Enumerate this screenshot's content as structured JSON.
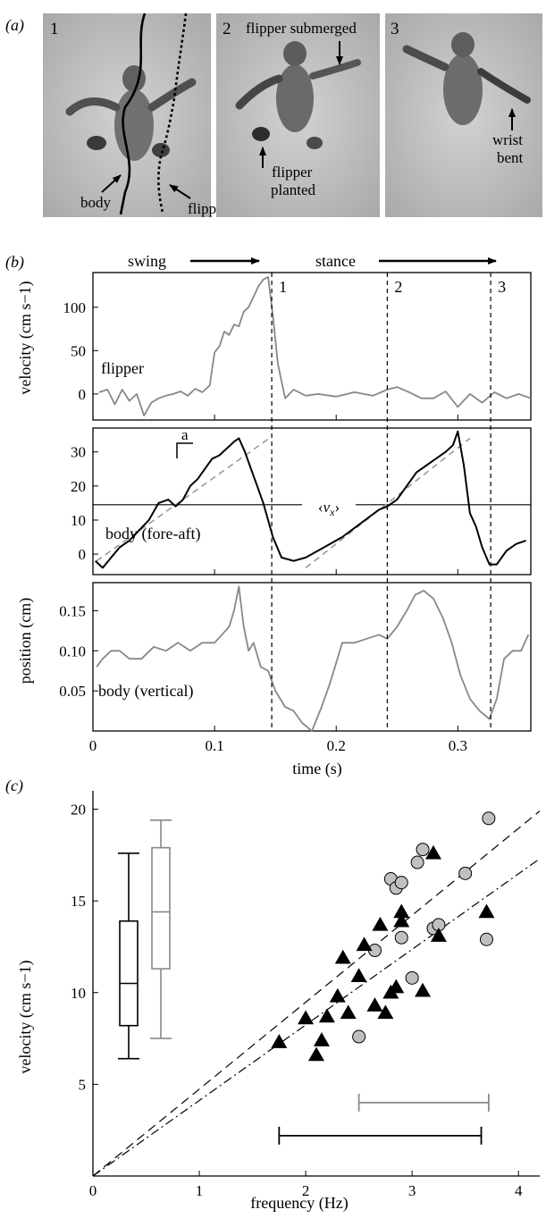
{
  "panel_a": {
    "label": "(a)",
    "frames": [
      {
        "number": "1",
        "annotations": [
          "body",
          "flipper"
        ]
      },
      {
        "number": "2",
        "annotations": [
          "flipper submerged",
          "flipper",
          "planted"
        ]
      },
      {
        "number": "3",
        "annotations": [
          "wrist",
          "bent"
        ]
      }
    ]
  },
  "colors": {
    "black": "#000000",
    "grey": "#888888",
    "grey_fill": "#c0c0c0",
    "photo_bg": "#c8c8c8"
  },
  "chart_data": [
    {
      "panel": "(b)",
      "type": "line",
      "phase_labels": [
        "swing",
        "stance"
      ],
      "event_lines": {
        "x": [
          0.147,
          0.242,
          0.327
        ],
        "labels": [
          "1",
          "2",
          "3"
        ]
      },
      "xlabel": "time (s)",
      "xticks": [
        "0",
        "0.1",
        "0.2",
        "0.3"
      ],
      "xlim": [
        0,
        0.36
      ],
      "subplots": [
        {
          "name": "flipper",
          "ylabel": "velocity (cm s−1)",
          "yticks": [
            "0",
            "50",
            "100"
          ],
          "ylim": [
            -30,
            140
          ],
          "color": "#888888",
          "series": {
            "x": [
              0.005,
              0.012,
              0.018,
              0.024,
              0.03,
              0.036,
              0.042,
              0.048,
              0.054,
              0.06,
              0.066,
              0.072,
              0.078,
              0.084,
              0.09,
              0.096,
              0.1,
              0.104,
              0.108,
              0.112,
              0.116,
              0.12,
              0.124,
              0.128,
              0.132,
              0.136,
              0.14,
              0.144,
              0.148,
              0.152,
              0.158,
              0.165,
              0.175,
              0.185,
              0.2,
              0.215,
              0.23,
              0.242,
              0.25,
              0.26,
              0.27,
              0.28,
              0.29,
              0.3,
              0.31,
              0.32,
              0.33,
              0.34,
              0.35,
              0.36
            ],
            "y": [
              2,
              5,
              -12,
              5,
              -8,
              0,
              -25,
              -10,
              -5,
              -2,
              0,
              3,
              -2,
              6,
              2,
              10,
              48,
              55,
              72,
              68,
              80,
              78,
              95,
              100,
              112,
              124,
              132,
              135,
              90,
              35,
              -5,
              5,
              -2,
              0,
              -3,
              2,
              -2,
              5,
              8,
              2,
              -5,
              -5,
              3,
              -15,
              0,
              -10,
              2,
              -5,
              0,
              -5
            ]
          }
        },
        {
          "name": "body (fore-aft)",
          "ylabel": "",
          "yticks": [
            "0",
            "10",
            "20",
            "30"
          ],
          "ylim": [
            -6,
            37
          ],
          "color": "#000000",
          "mean_line": {
            "value": 14.5,
            "label": "<v_x>"
          },
          "annotation": "a",
          "series": {
            "x": [
              0.002,
              0.008,
              0.015,
              0.022,
              0.03,
              0.038,
              0.046,
              0.054,
              0.062,
              0.068,
              0.074,
              0.08,
              0.086,
              0.092,
              0.098,
              0.104,
              0.11,
              0.116,
              0.12,
              0.125,
              0.13,
              0.135,
              0.14,
              0.148,
              0.155,
              0.165,
              0.175,
              0.19,
              0.205,
              0.22,
              0.235,
              0.242,
              0.25,
              0.258,
              0.266,
              0.274,
              0.282,
              0.29,
              0.296,
              0.3,
              0.305,
              0.31,
              0.315,
              0.32,
              0.326,
              0.332,
              0.34,
              0.348,
              0.356
            ],
            "y": [
              -2,
              -4,
              -1,
              2,
              4,
              7,
              10,
              15,
              16,
              14,
              16,
              20,
              22,
              25,
              28,
              29,
              31,
              33,
              34,
              30,
              25,
              20,
              15,
              5,
              -1,
              -2,
              -1,
              2,
              5,
              9,
              13,
              14,
              16,
              20,
              24,
              26,
              28,
              30,
              32,
              36,
              26,
              12,
              8,
              2,
              -3,
              -3,
              1,
              3,
              4
            ]
          },
          "fits": [
            {
              "x": [
                0.003,
                0.145
              ],
              "y": [
                -2,
                34
              ]
            },
            {
              "x": [
                0.175,
                0.31
              ],
              "y": [
                -4,
                34
              ]
            }
          ]
        },
        {
          "name": "body (vertical)",
          "ylabel": "position (cm)",
          "yticks": [
            "0.05",
            "0.10",
            "0.15"
          ],
          "ylim": [
            0,
            0.185
          ],
          "color": "#888888",
          "series": {
            "x": [
              0.003,
              0.008,
              0.015,
              0.022,
              0.03,
              0.04,
              0.05,
              0.06,
              0.07,
              0.08,
              0.09,
              0.1,
              0.106,
              0.112,
              0.116,
              0.12,
              0.124,
              0.128,
              0.132,
              0.138,
              0.144,
              0.15,
              0.158,
              0.165,
              0.172,
              0.18,
              0.188,
              0.195,
              0.205,
              0.215,
              0.225,
              0.235,
              0.242,
              0.25,
              0.258,
              0.265,
              0.272,
              0.28,
              0.288,
              0.295,
              0.302,
              0.31,
              0.318,
              0.326,
              0.332,
              0.338,
              0.345,
              0.352,
              0.358
            ],
            "y": [
              0.08,
              0.09,
              0.1,
              0.1,
              0.09,
              0.09,
              0.105,
              0.1,
              0.11,
              0.1,
              0.11,
              0.11,
              0.12,
              0.13,
              0.15,
              0.18,
              0.13,
              0.1,
              0.11,
              0.08,
              0.075,
              0.05,
              0.03,
              0.025,
              0.01,
              0.0,
              0.03,
              0.06,
              0.11,
              0.11,
              0.115,
              0.12,
              0.115,
              0.13,
              0.15,
              0.17,
              0.175,
              0.165,
              0.14,
              0.11,
              0.07,
              0.04,
              0.025,
              0.015,
              0.04,
              0.09,
              0.1,
              0.1,
              0.12
            ]
          }
        }
      ]
    },
    {
      "panel": "(c)",
      "type": "scatter",
      "xlabel": "frequency (Hz)",
      "ylabel": "velocity (cm s−1)",
      "xticks": [
        "0",
        "1",
        "2",
        "3",
        "4"
      ],
      "yticks": [
        "5",
        "10",
        "15",
        "20"
      ],
      "xlim": [
        0,
        4.2
      ],
      "ylim": [
        0,
        21
      ],
      "series": [
        {
          "marker": "circle",
          "color": "#c0c0c0",
          "x": [
            2.5,
            2.65,
            2.8,
            2.85,
            2.9,
            2.9,
            3.0,
            3.05,
            3.1,
            3.2,
            3.25,
            3.5,
            3.7,
            3.72
          ],
          "y": [
            7.6,
            12.3,
            16.2,
            15.7,
            16.0,
            13.0,
            10.8,
            17.1,
            17.8,
            13.5,
            13.7,
            16.5,
            12.9,
            19.5
          ]
        },
        {
          "marker": "triangle",
          "color": "#000000",
          "x": [
            1.75,
            2.0,
            2.1,
            2.15,
            2.2,
            2.3,
            2.35,
            2.4,
            2.5,
            2.55,
            2.65,
            2.7,
            2.75,
            2.8,
            2.85,
            2.9,
            2.9,
            3.1,
            3.2,
            3.25,
            3.7
          ],
          "y": [
            7.3,
            8.6,
            6.6,
            7.4,
            8.7,
            9.8,
            11.9,
            8.9,
            10.9,
            12.6,
            9.3,
            13.7,
            8.9,
            10.0,
            10.3,
            14.4,
            13.9,
            10.1,
            17.6,
            13.1,
            14.4
          ]
        }
      ],
      "fit_lines": [
        {
          "style": "dashed",
          "x": [
            0,
            4.2
          ],
          "y": [
            0,
            19.9
          ]
        },
        {
          "style": "dash-dot",
          "x": [
            0,
            4.2
          ],
          "y": [
            0,
            17.3
          ]
        }
      ],
      "boxplots": [
        {
          "color": "#000000",
          "min": 6.4,
          "q1": 8.2,
          "median": 10.5,
          "q3": 13.9,
          "max": 17.6
        },
        {
          "color": "#888888",
          "min": 7.5,
          "q1": 11.3,
          "median": 14.4,
          "q3": 17.9,
          "max": 19.4
        }
      ],
      "range_bars": [
        {
          "color": "#000000",
          "x": [
            1.75,
            3.65
          ],
          "y": 2.2
        },
        {
          "color": "#888888",
          "x": [
            2.5,
            3.72
          ],
          "y": 4.0
        }
      ]
    }
  ]
}
